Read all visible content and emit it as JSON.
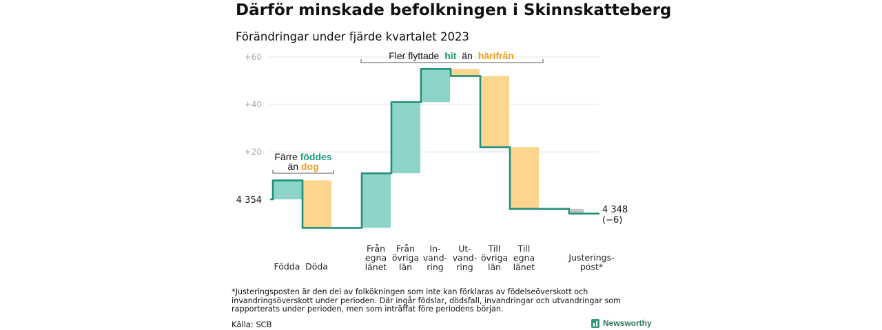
{
  "title": "Därför minskade befolkningen i Skinnskatteberg",
  "subtitle": "Förändringar under fjärde kvartalet 2023",
  "footnote": "*Justeringsposten är den del av folkökningen som inte kan förklaras av födelseöverskott och invandringsöverskott under perioden. Där ingår födslar, dödsfall, invandringar och utvandringar som rapporterats under perioden, men som inträffat före periodens början.",
  "source": "Källa: SCB",
  "brand": "Newsworthy",
  "colors": {
    "increase": "#8dd5c9",
    "decrease": "#fcd58f",
    "adjustment": "#c4c4c4",
    "line": "#1f8f78",
    "hit": "#1a9a80",
    "harifran": "#f0a01e"
  },
  "annotations": {
    "births": {
      "prefix": "Färre",
      "highlight1": "föddes",
      "mid": "än",
      "highlight2": "dog"
    },
    "migration": {
      "prefix": "Fler flyttade",
      "highlight1": "hit",
      "mid": "än",
      "highlight2": "härifrån"
    }
  },
  "chart_data": {
    "type": "waterfall",
    "title": "Därför minskade befolkningen i Skinnskatteberg",
    "subtitle": "Förändringar under fjärde kvartalet 2023",
    "start_value": 4354,
    "start_label": "4 354",
    "end_value": 4348,
    "end_label": "4 348",
    "end_change_label": "(−6)",
    "ytick_labels": [
      "+60",
      "+40",
      "+20"
    ],
    "yticks": [
      60,
      40,
      20
    ],
    "ylim": [
      -13,
      64
    ],
    "grid": true,
    "steps": [
      {
        "label": "Födda",
        "value": 8,
        "kind": "increase"
      },
      {
        "label": "Döda",
        "value": -20,
        "kind": "decrease"
      },
      {
        "label": "Från egna länet",
        "value": 23,
        "kind": "increase"
      },
      {
        "label": "Från övriga län",
        "value": 30,
        "kind": "increase"
      },
      {
        "label": "In- vand- ring",
        "value": 14,
        "kind": "increase"
      },
      {
        "label": "Ut- vand- ring",
        "value": -3,
        "kind": "decrease"
      },
      {
        "label": "Till övriga län",
        "value": -30,
        "kind": "decrease"
      },
      {
        "label": "Till egna länet",
        "value": -26,
        "kind": "decrease"
      },
      {
        "label": "Justerings- post*",
        "value": -2,
        "kind": "adjustment"
      }
    ],
    "category_lines": [
      [
        "Födda"
      ],
      [
        "Döda"
      ],
      [
        "Från",
        "egna",
        "länet"
      ],
      [
        "Från",
        "övriga",
        "län"
      ],
      [
        "In-",
        "vand-",
        "ring"
      ],
      [
        "Ut-",
        "vand-",
        "ring"
      ],
      [
        "Till",
        "övriga",
        "län"
      ],
      [
        "Till",
        "egna",
        "länet"
      ],
      [
        "Justerings-",
        "post*"
      ]
    ]
  }
}
